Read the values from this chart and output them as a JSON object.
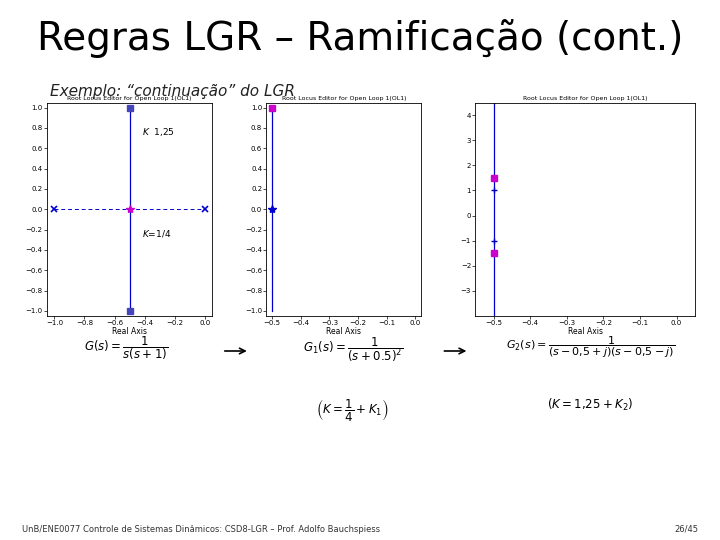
{
  "title": "Regras LGR – Ramificação (cont.)",
  "subtitle": "Exemplo: “continuação” do LGR",
  "footer_left": "UnB/ENE0077 Controle de Sistemas Dinâmicos: CSD8-LGR – Prof. Adolfo Bauchspiess",
  "footer_right": "26/45",
  "title_fontsize": 28,
  "subtitle_fontsize": 11,
  "background": "#ffffff",
  "plot1": {
    "title": "Root Locus Editor for Open Loop 1(OL1)",
    "xlim": [
      -1.05,
      0.05
    ],
    "ylim": [
      -1.05,
      1.05
    ],
    "xlabel": "Real Axis",
    "xticks": [
      -1.0,
      -0.8,
      -0.6,
      -0.4,
      -0.2,
      0
    ],
    "yticks": [
      -1.0,
      -0.8,
      -0.6,
      -0.4,
      -0.2,
      0,
      0.2,
      0.4,
      0.6,
      0.8,
      1.0
    ]
  },
  "plot2": {
    "title": "Root Locus Editor for Open Loop 1(OL1)",
    "xlim": [
      -0.52,
      0.02
    ],
    "ylim": [
      -1.05,
      1.05
    ],
    "xlabel": "Real Axis",
    "xticks": [
      -0.5,
      -0.4,
      -0.3,
      -0.2,
      -0.1,
      0
    ],
    "yticks": [
      -1.0,
      -0.8,
      -0.6,
      -0.4,
      -0.2,
      0,
      0.2,
      0.4,
      0.6,
      0.8,
      1.0
    ]
  },
  "plot3": {
    "title": "Root Locus Editor for Open Loop 1(OL1)",
    "xlim": [
      -0.55,
      0.05
    ],
    "ylim": [
      -4.0,
      4.5
    ],
    "xlabel": "Real Axis",
    "xticks": [
      -0.5,
      -0.4,
      -0.3,
      -0.2,
      -0.1,
      0
    ],
    "yticks": [
      -3,
      -2,
      -1,
      0,
      1,
      2,
      3,
      4
    ]
  }
}
